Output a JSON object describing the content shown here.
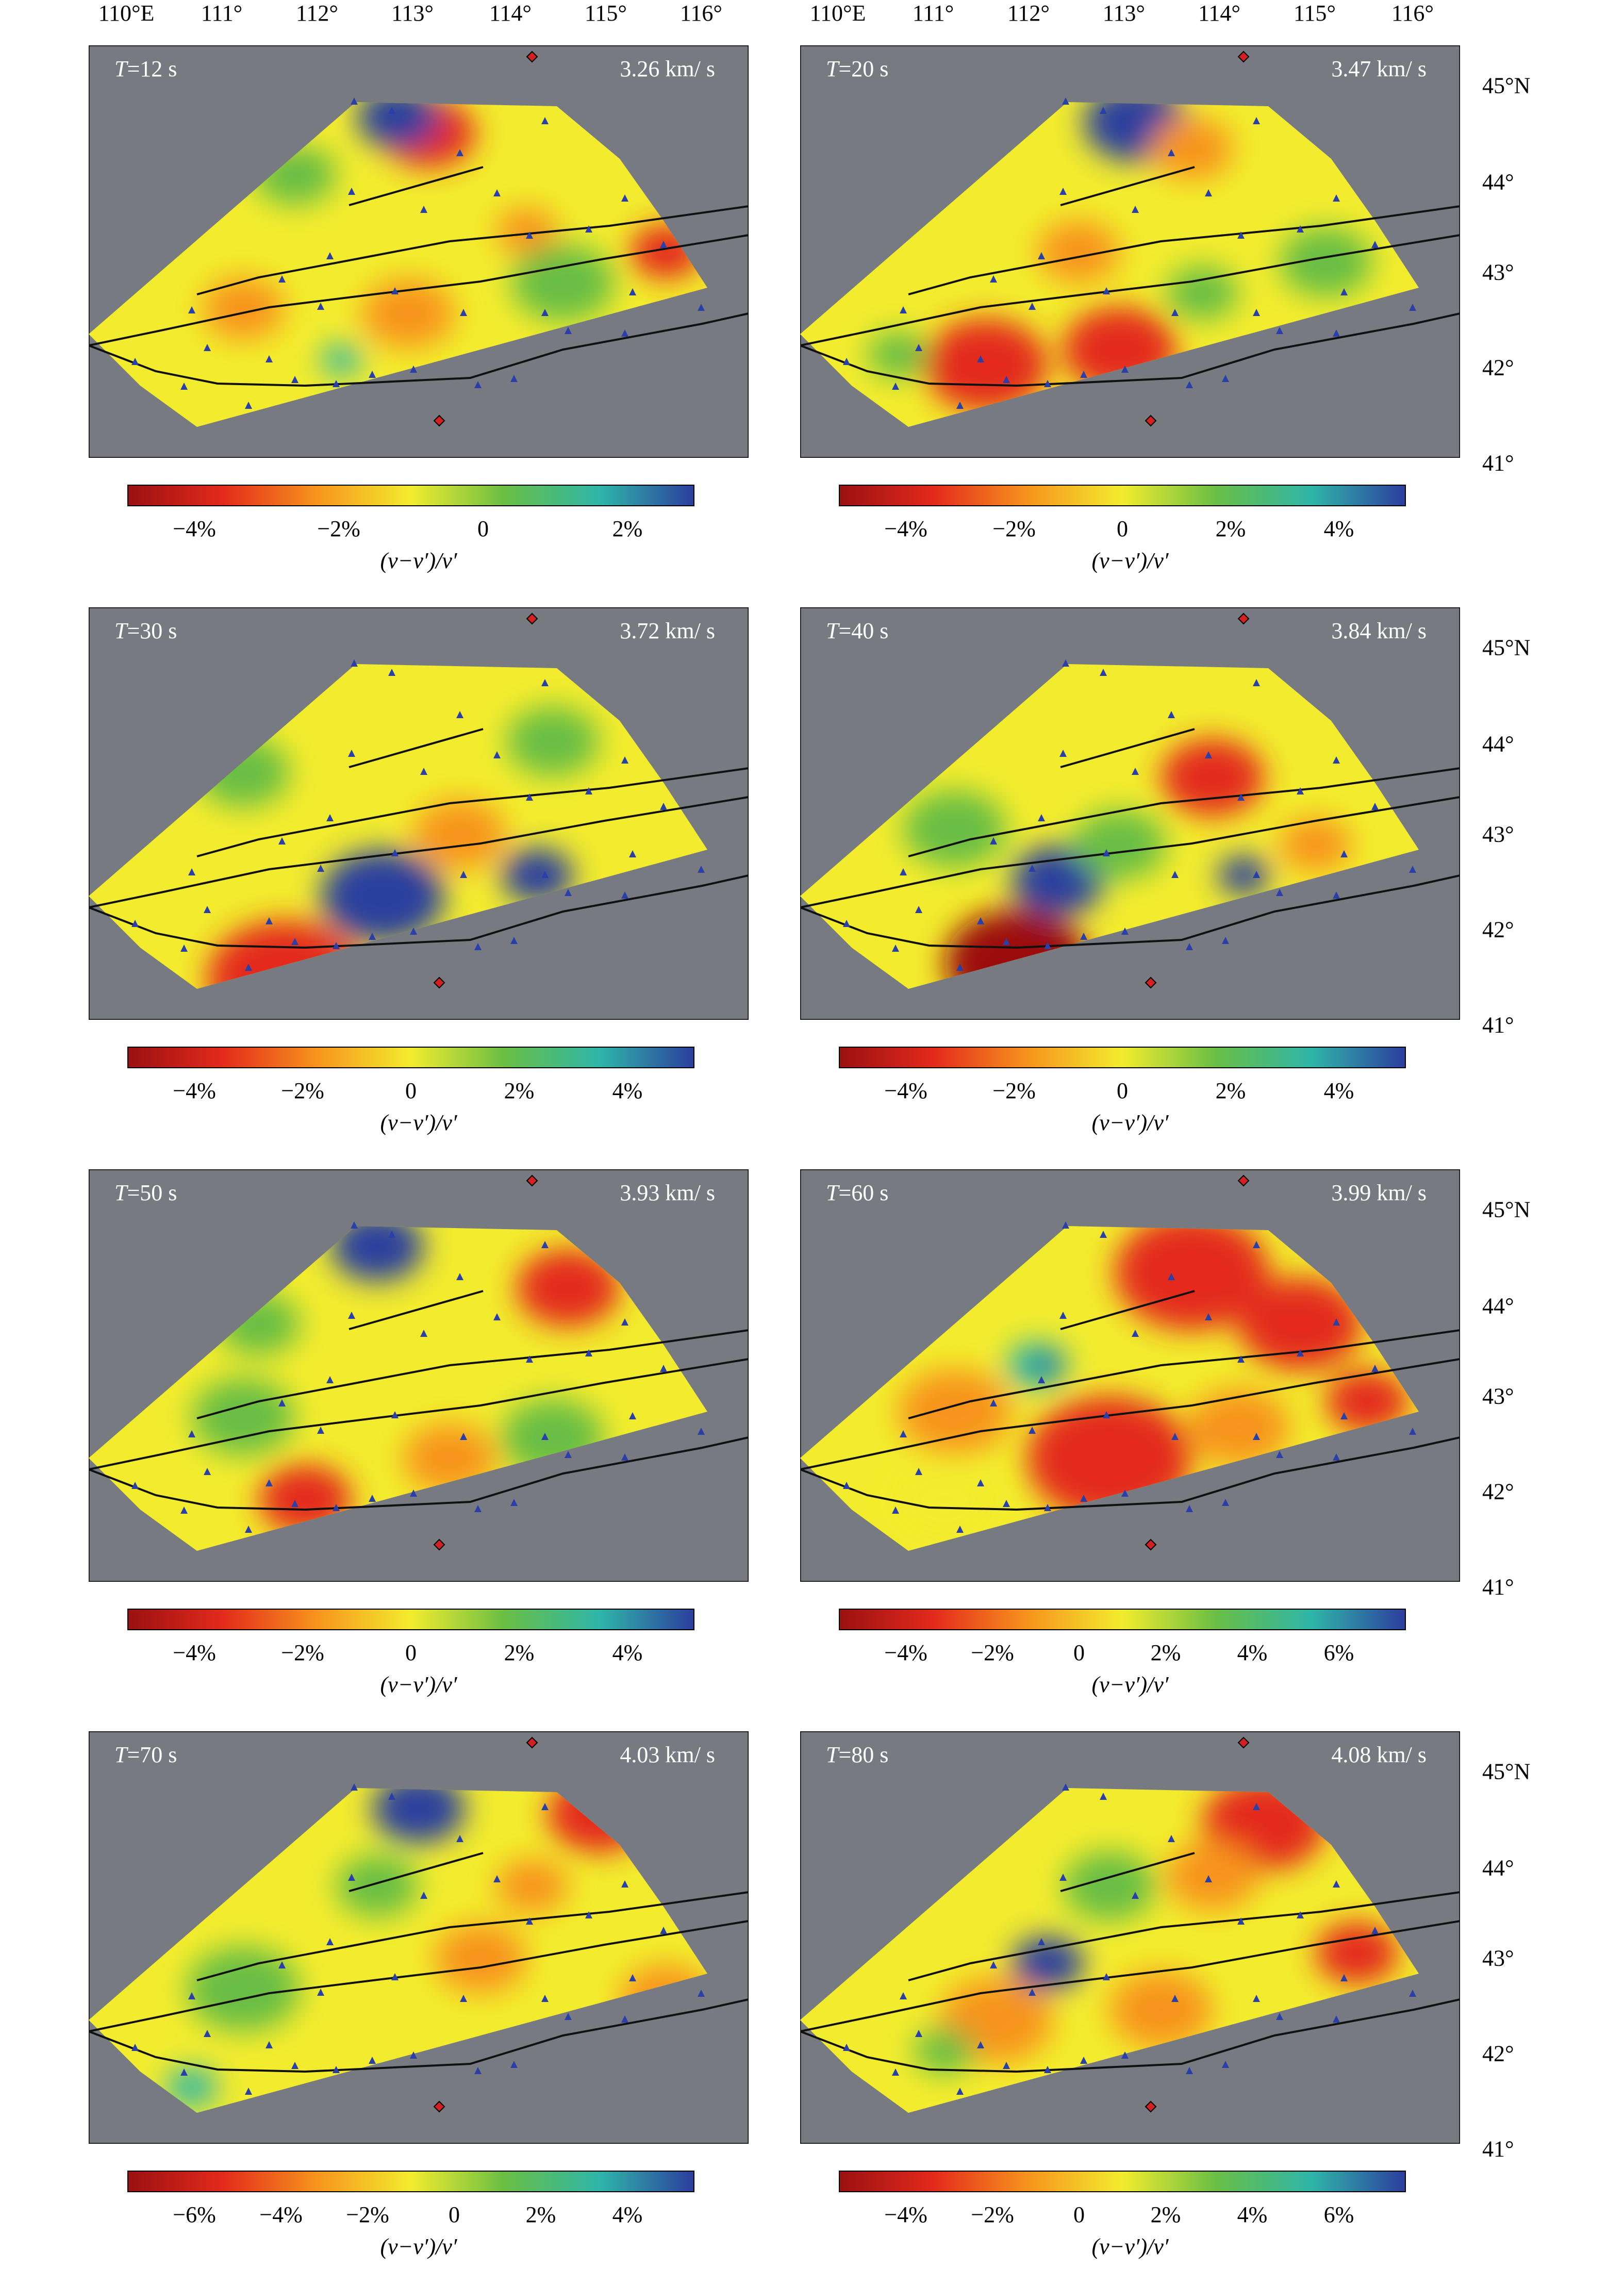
{
  "axes": {
    "longitude_labels": [
      "110°E",
      "111°",
      "112°",
      "113°",
      "114°",
      "115°",
      "116°"
    ],
    "latitude_labels": [
      "45°N",
      "44°",
      "43°",
      "42°",
      "41°"
    ]
  },
  "panels": [
    {
      "id": "T12",
      "period_prefix": "T",
      "period_value": "=12 s",
      "velocity": "3.26 km/ s",
      "colorbar": {
        "ticks": [
          "−4%",
          "−2%",
          "0",
          "2%"
        ],
        "title": "(v−v′)/v′"
      }
    },
    {
      "id": "T20",
      "period_prefix": "T",
      "period_value": "=20 s",
      "velocity": "3.47 km/ s",
      "colorbar": {
        "ticks": [
          "−4%",
          "−2%",
          "0",
          "2%",
          "4%"
        ],
        "title": "(v−v′)/v′"
      }
    },
    {
      "id": "T30",
      "period_prefix": "T",
      "period_value": "=30 s",
      "velocity": "3.72 km/ s",
      "colorbar": {
        "ticks": [
          "−4%",
          "−2%",
          "0",
          "2%",
          "4%"
        ],
        "title": "(v−v′)/v′"
      }
    },
    {
      "id": "T40",
      "period_prefix": "T",
      "period_value": "=40 s",
      "velocity": "3.84 km/ s",
      "colorbar": {
        "ticks": [
          "−4%",
          "−2%",
          "0",
          "2%",
          "4%"
        ],
        "title": "(v−v′)/v′"
      }
    },
    {
      "id": "T50",
      "period_prefix": "T",
      "period_value": "=50 s",
      "velocity": "3.93 km/ s",
      "colorbar": {
        "ticks": [
          "−4%",
          "−2%",
          "0",
          "2%",
          "4%"
        ],
        "title": "(v−v′)/v′"
      }
    },
    {
      "id": "T60",
      "period_prefix": "T",
      "period_value": "=60 s",
      "velocity": "3.99 km/ s",
      "colorbar": {
        "ticks": [
          "−4%",
          "−2%",
          "0",
          "2%",
          "4%",
          "6%"
        ],
        "title": "(v−v′)/v′"
      }
    },
    {
      "id": "T70",
      "period_prefix": "T",
      "period_value": "=70 s",
      "velocity": "4.03 km/ s",
      "colorbar": {
        "ticks": [
          "−6%",
          "−4%",
          "−2%",
          "0",
          "2%",
          "4%"
        ],
        "title": "(v−v′)/v′"
      }
    },
    {
      "id": "T80",
      "period_prefix": "T",
      "period_value": "=80 s",
      "velocity": "4.08 km/ s",
      "colorbar": {
        "ticks": [
          "−4%",
          "−2%",
          "0",
          "2%",
          "4%",
          "6%"
        ],
        "title": "(v−v′)/v′"
      }
    }
  ],
  "colors": {
    "background_map": "#777a80",
    "station": "#2a3fa8",
    "marker_red": "#d42020",
    "fault": "#111111",
    "colorbar_stops": [
      "#9b1111",
      "#e32a1c",
      "#f7941d",
      "#f3ec2e",
      "#69be45",
      "#2fb6a9",
      "#2c3f9e"
    ]
  },
  "icons": [
    "station-triangle-icon",
    "diamond-marker-icon"
  ]
}
